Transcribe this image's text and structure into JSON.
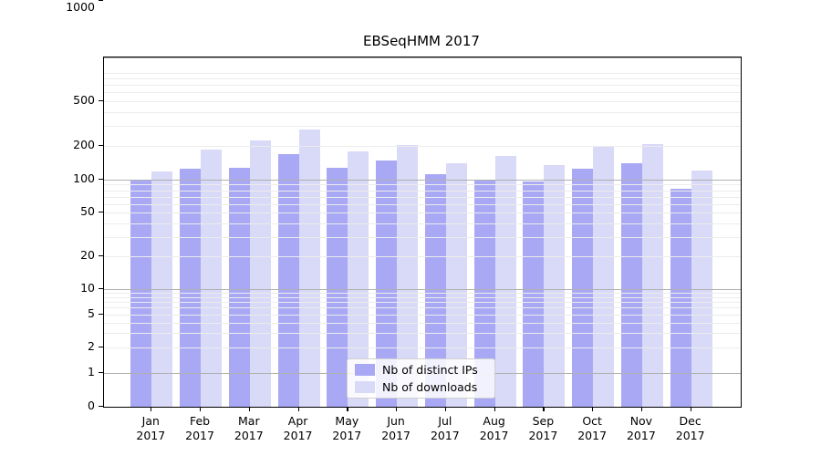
{
  "title": "EBSeqHMM 2017",
  "colors": {
    "ips_bar": "#a8a8f5",
    "downloads_bar": "#d9d9f8",
    "grid_major": "#b0b0b0",
    "grid_minor": "#ececec",
    "axis": "#000000"
  },
  "legend": {
    "items": [
      {
        "label": "Nb of distinct IPs",
        "series": "ips"
      },
      {
        "label": "Nb of downloads",
        "series": "downloads"
      }
    ]
  },
  "y_axis": {
    "tick_labels": [
      "0",
      "1",
      "2",
      "5",
      "10",
      "20",
      "50",
      "100",
      "200",
      "500",
      "1000"
    ]
  },
  "chart_data": {
    "type": "bar",
    "title": "EBSeqHMM 2017",
    "categories": [
      "Jan 2017",
      "Feb 2017",
      "Mar 2017",
      "Apr 2017",
      "May 2017",
      "Jun 2017",
      "Jul 2017",
      "Aug 2017",
      "Sep 2017",
      "Oct 2017",
      "Nov 2017",
      "Dec 2017"
    ],
    "series": [
      {
        "name": "Nb of distinct IPs",
        "color_key": "ips_bar",
        "values": [
          100,
          126,
          128,
          169,
          128,
          149,
          112,
          98,
          97,
          126,
          139,
          82
        ]
      },
      {
        "name": "Nb of downloads",
        "color_key": "downloads_bar",
        "values": [
          118,
          186,
          223,
          281,
          178,
          205,
          140,
          163,
          135,
          196,
          208,
          121
        ]
      }
    ],
    "xlabel": "",
    "ylabel": "",
    "yscale": "log (linear below 1)",
    "y_ticks": [
      0,
      1,
      2,
      5,
      10,
      20,
      50,
      100,
      200,
      500,
      1000
    ],
    "ylim": [
      0,
      1240
    ],
    "grid": "on",
    "legend_position": "inside lower-center"
  }
}
